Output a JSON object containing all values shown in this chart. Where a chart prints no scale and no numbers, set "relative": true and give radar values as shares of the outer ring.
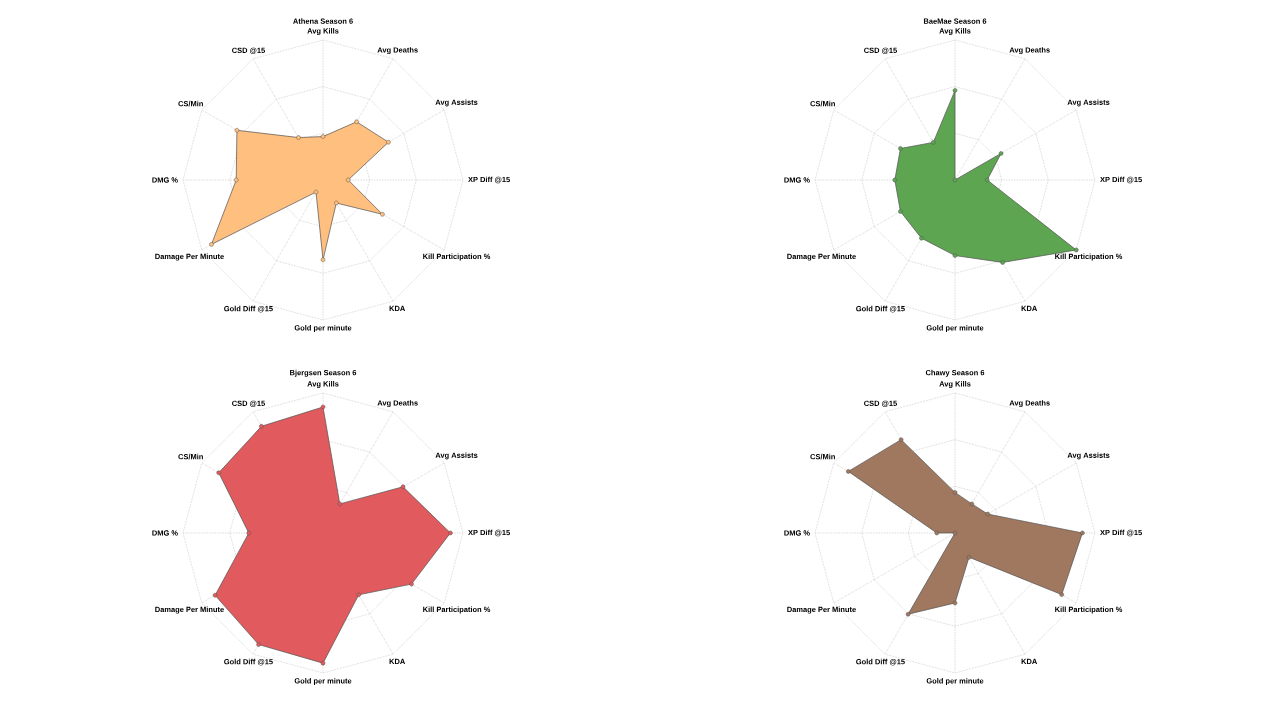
{
  "chart_data": [
    {
      "type": "radar",
      "title": "Athena Season 6",
      "relative": true,
      "grid": true,
      "marker": "circle",
      "categories": [
        "Avg Kills",
        "Avg Deaths",
        "Avg Assists",
        "XP Diff @15",
        "Kill Participation %",
        "KDA",
        "Gold per minute",
        "Gold Diff @15",
        "Damage Per Minute",
        "DMG %",
        "CS/Min",
        "CSD @15"
      ],
      "series": [
        {
          "color": "#ffbf7f",
          "values": [
            0.31,
            0.48,
            0.54,
            0.18,
            0.49,
            0.19,
            0.57,
            0.1,
            0.92,
            0.62,
            0.71,
            0.35
          ]
        }
      ]
    },
    {
      "type": "radar",
      "title": "BaeMae Season 6",
      "relative": true,
      "grid": true,
      "marker": "circle",
      "categories": [
        "Avg Kills",
        "Avg Deaths",
        "Avg Assists",
        "XP Diff @15",
        "Kill Participation %",
        "KDA",
        "Gold per minute",
        "Gold Diff @15",
        "Damage Per Minute",
        "DMG %",
        "CS/Min",
        "CSD @15"
      ],
      "series": [
        {
          "color": "#5ea552",
          "values": [
            0.64,
            0,
            0.38,
            0.23,
            1,
            0.68,
            0.54,
            0.48,
            0.45,
            0.43,
            0.45,
            0.31
          ]
        }
      ]
    },
    {
      "type": "radar",
      "title": "Bjergsen Season 6",
      "relative": true,
      "grid": true,
      "marker": "circle",
      "categories": [
        "Avg Kills",
        "Avg Deaths",
        "Avg Assists",
        "XP Diff @15",
        "Kill Participation %",
        "KDA",
        "Gold per minute",
        "Gold Diff @15",
        "Damage Per Minute",
        "DMG %",
        "CS/Min",
        "CSD @15"
      ],
      "series": [
        {
          "color": "#e15b5e",
          "values": [
            0.9,
            0.24,
            0.66,
            0.91,
            0.73,
            0.51,
            0.93,
            0.92,
            0.89,
            0.53,
            0.86,
            0.88
          ]
        }
      ]
    },
    {
      "type": "radar",
      "title": "Chawy Season 6",
      "relative": true,
      "grid": true,
      "marker": "circle",
      "categories": [
        "Avg Kills",
        "Avg Deaths",
        "Avg Assists",
        "XP Diff @15",
        "Kill Participation %",
        "KDA",
        "Gold per minute",
        "Gold Diff @15",
        "Damage Per Minute",
        "DMG %",
        "CS/Min",
        "CSD @15"
      ],
      "series": [
        {
          "color": "#a0785f",
          "values": [
            0.29,
            0.24,
            0.27,
            0.91,
            0.88,
            0.2,
            0.5,
            0.67,
            0,
            0.13,
            0.88,
            0.77
          ]
        }
      ]
    }
  ]
}
